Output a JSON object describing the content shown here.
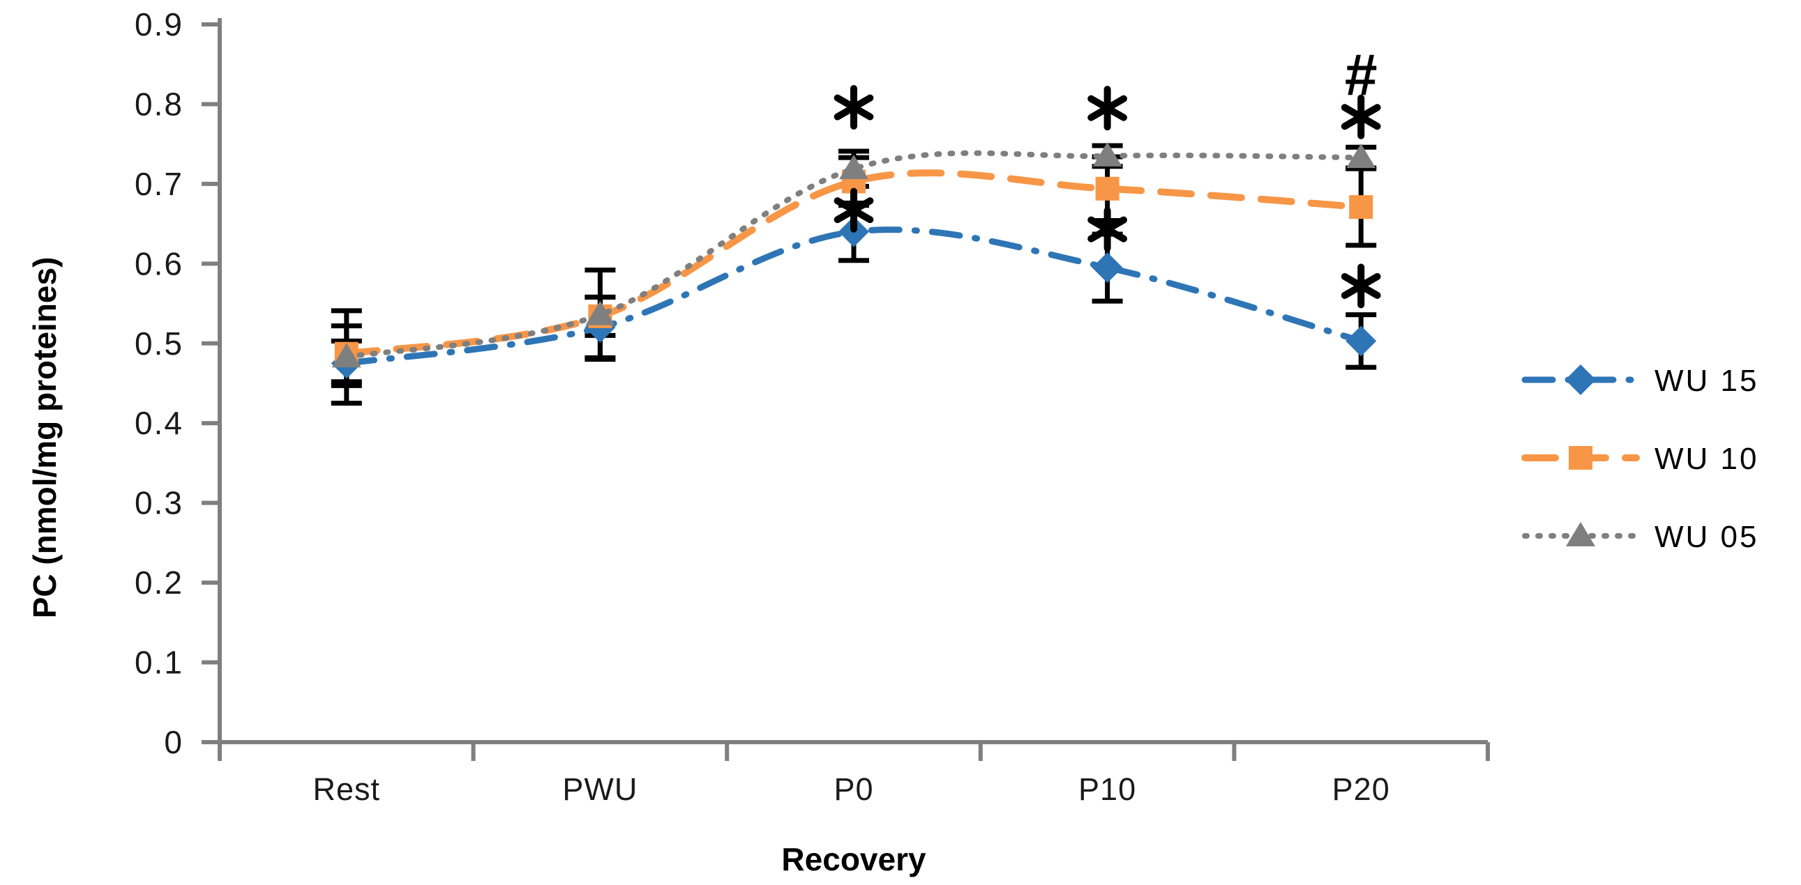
{
  "figure": {
    "background": "#FFFFFF",
    "axis_color": "#7F7F7F",
    "tick_label_color": "#1A1A1A",
    "error_bar_color": "#000000",
    "annotation_color": "#000000"
  },
  "chart_data": {
    "type": "line",
    "title": "",
    "xlabel": "Recovery",
    "ylabel": "PC (nmol/mg proteines)",
    "categories": [
      "Rest",
      "PWU",
      "P0",
      "P10",
      "P20"
    ],
    "ylim": [
      0,
      0.9
    ],
    "ytick_step": 0.1,
    "ytick_labels": [
      "0",
      "0.1",
      "0.2",
      "0.3",
      "0.4",
      "0.5",
      "0.6",
      "0.7",
      "0.8",
      "0.9"
    ],
    "grid": false,
    "legend_position": "right",
    "series": [
      {
        "name": "WU 15",
        "color": "#2E75B6",
        "marker": "diamond",
        "line_style": "dash-dot",
        "values": [
          0.475,
          0.52,
          0.64,
          0.595,
          0.503
        ],
        "errors": [
          0.028,
          0.038,
          0.036,
          0.042,
          0.033
        ]
      },
      {
        "name": "WU 10",
        "color": "#F79646",
        "marker": "square",
        "line_style": "dashed",
        "values": [
          0.487,
          0.534,
          0.703,
          0.694,
          0.671
        ],
        "errors": [
          0.035,
          0.024,
          0.03,
          0.04,
          0.048
        ]
      },
      {
        "name": "WU 05",
        "color": "#7F7F7F",
        "marker": "triangle",
        "line_style": "dotted",
        "values": [
          0.483,
          0.536,
          0.719,
          0.735,
          0.733
        ],
        "errors": [
          0.058,
          0.056,
          0.022,
          0.013,
          0.013
        ]
      }
    ],
    "annotations": [
      {
        "category": "P0",
        "symbol": "*",
        "y": 0.796
      },
      {
        "category": "P0",
        "symbol": "*",
        "y": 0.667
      },
      {
        "category": "P10",
        "symbol": "*",
        "y": 0.795
      },
      {
        "category": "P10",
        "symbol": "*",
        "y": 0.643
      },
      {
        "category": "P20",
        "symbol": "#",
        "y": 0.838
      },
      {
        "category": "P20",
        "symbol": "*",
        "y": 0.784
      },
      {
        "category": "P20",
        "symbol": "*",
        "y": 0.572
      }
    ]
  }
}
